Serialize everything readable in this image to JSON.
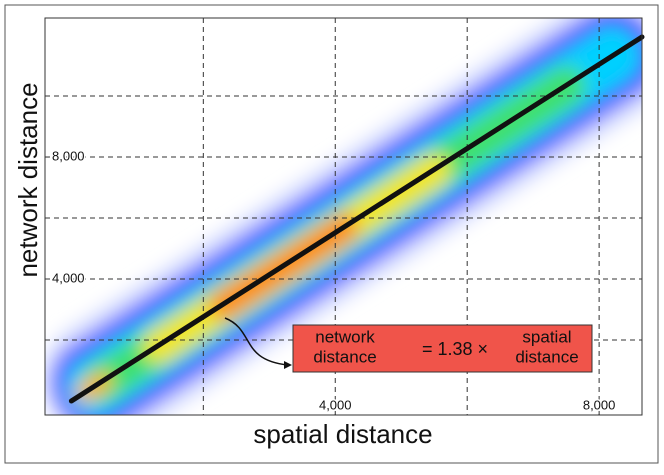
{
  "chart_data": {
    "type": "density",
    "x_label": "spatial distance",
    "y_label": "network distance",
    "xlim": [
      -400,
      8650
    ],
    "ylim": [
      -460,
      12560
    ],
    "xgrid": [
      2000,
      4000,
      6000,
      8000
    ],
    "ygrid": [
      2000,
      4000,
      6000,
      8000,
      10000
    ],
    "xticks": [
      {
        "value": 4000,
        "label": "4,000"
      },
      {
        "value": 8000,
        "label": "8,000"
      }
    ],
    "yticks": [
      {
        "value": 4000,
        "label": "4,000"
      },
      {
        "value": 8000,
        "label": "8,000"
      }
    ],
    "fit": {
      "slope": 1.38,
      "color": "#111111"
    },
    "annotation": {
      "left": [
        "network",
        "distance"
      ],
      "middle": "= 1.38 ×",
      "right": [
        "spatial",
        "distance"
      ],
      "color": "#f0544a"
    }
  }
}
